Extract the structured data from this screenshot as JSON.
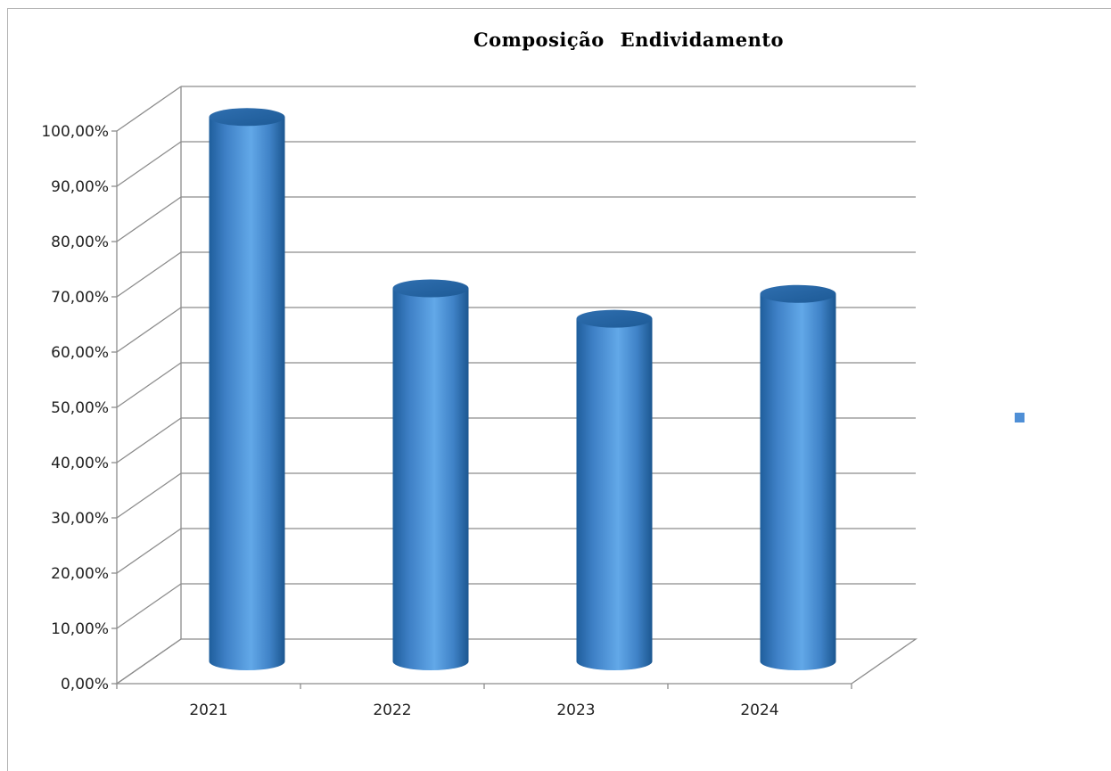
{
  "chart_data": {
    "type": "bar",
    "title": "Composição   Endividamento",
    "categories": [
      "2021",
      "2022",
      "2023",
      "2024"
    ],
    "series": [
      {
        "values": [
          98.5,
          67.5,
          62.0,
          66.5
        ]
      }
    ],
    "y_ticks": [
      "0,00%",
      "10,00%",
      "20,00%",
      "30,00%",
      "40,00%",
      "50,00%",
      "60,00%",
      "70,00%",
      "80,00%",
      "90,00%",
      "100,00%"
    ],
    "ylim": [
      0,
      100
    ],
    "grid": true,
    "legend": "right",
    "bar_color": "#5b9bd5"
  }
}
